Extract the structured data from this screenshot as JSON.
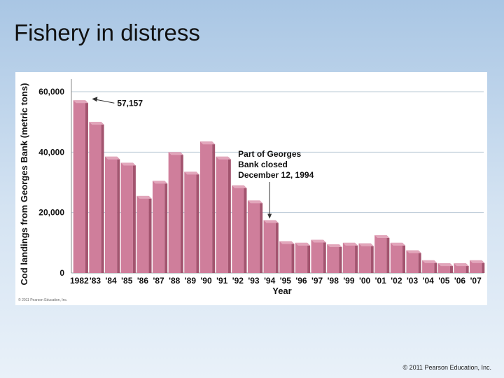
{
  "slide": {
    "title": "Fishery in distress",
    "footer": "© 2011 Pearson Education, Inc."
  },
  "chart_data": {
    "type": "bar",
    "xlabel": "Year",
    "ylabel": "Cod landings from Georges Bank (metric tons)",
    "categories": [
      "1982",
      "'83",
      "'84",
      "'85",
      "'86",
      "'87",
      "'88",
      "'89",
      "'90",
      "'91",
      "'92",
      "'93",
      "'94",
      "'95",
      "'96",
      "'97",
      "'98",
      "'99",
      "'00",
      "'01",
      "'02",
      "'03",
      "'04",
      "'05",
      "'06",
      "'07"
    ],
    "values": [
      57157,
      50000,
      38500,
      36500,
      25500,
      30500,
      40000,
      33500,
      43500,
      38500,
      29000,
      24000,
      17500,
      10500,
      10000,
      11000,
      9500,
      10000,
      9800,
      12500,
      10000,
      7500,
      4200,
      3200,
      3200,
      4200
    ],
    "ylim": [
      0,
      60000
    ],
    "yticks": [
      0,
      20000,
      40000,
      60000
    ],
    "ytick_labels": [
      "0",
      "20,000",
      "40,000",
      "60,000"
    ],
    "grid": true,
    "bar_color": "#cf7e9b",
    "annotations": [
      {
        "text": "57,157",
        "category": "1982"
      },
      {
        "lines": [
          "Part of Georges",
          "Bank closed",
          "December 12, 1994"
        ],
        "category": "'94"
      }
    ],
    "credit": "© 2011 Pearson Education, Inc."
  }
}
